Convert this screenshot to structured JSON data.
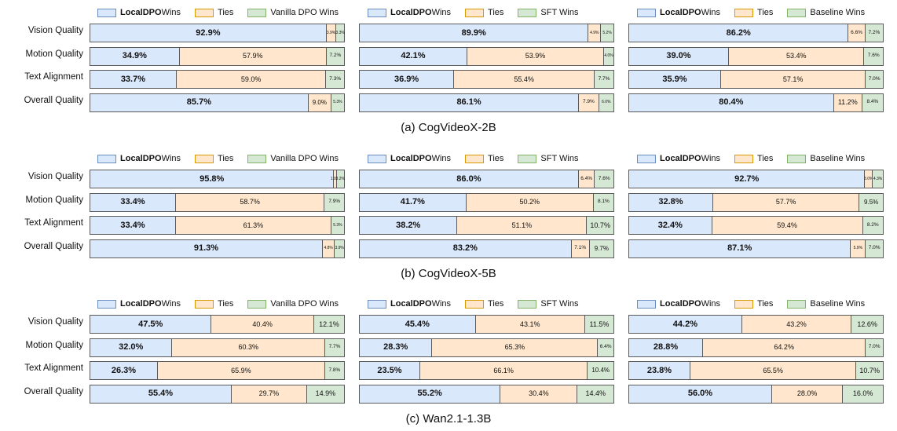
{
  "colors": {
    "local_fill": "#dae8fc",
    "local_border": "#6c8ebf",
    "ties_fill": "#ffe6cc",
    "ties_border": "#d79b00",
    "base_fill": "#d5e8d4",
    "base_border": "#82b366"
  },
  "chart_data": [
    {
      "type": "bar",
      "orientation": "horizontal",
      "stacked": true,
      "normalized": true,
      "caption": "(a) CogVideoX-2B",
      "panels": [
        {
          "legend": {
            "local": "LocalDPO",
            "local_suffix": " Wins",
            "ties": "Ties",
            "base": "Vanilla DPO Wins"
          },
          "categories": [
            "Vision Quality",
            "Motion Quality",
            "Text Alignment",
            "Overall Quality"
          ],
          "series": [
            {
              "name": "LocalDPO Wins",
              "values": [
                92.9,
                34.9,
                33.7,
                85.7
              ],
              "labels": [
                "92.9%",
                "34.9%",
                "33.7%",
                "85.7%"
              ]
            },
            {
              "name": "Ties",
              "values": [
                3.9,
                57.9,
                59.0,
                9.0
              ],
              "labels": [
                "3.9%",
                "57.9%",
                "59.0%",
                "9.0%"
              ]
            },
            {
              "name": "Vanilla DPO Wins",
              "values": [
                3.3,
                7.2,
                7.3,
                5.3
              ],
              "labels": [
                "3.3%",
                "7.2%",
                "7.3%",
                "5.3%"
              ]
            }
          ]
        },
        {
          "legend": {
            "local": "LocalDPO",
            "local_suffix": " Wins",
            "ties": "Ties",
            "base": "SFT Wins"
          },
          "categories": [
            "Vision Quality",
            "Motion Quality",
            "Text Alignment",
            "Overall Quality"
          ],
          "series": [
            {
              "name": "LocalDPO Wins",
              "values": [
                89.9,
                42.1,
                36.9,
                86.1
              ],
              "labels": [
                "89.9%",
                "42.1%",
                "36.9%",
                "86.1%"
              ]
            },
            {
              "name": "Ties",
              "values": [
                4.9,
                53.9,
                55.4,
                7.9
              ],
              "labels": [
                "4.9%",
                "53.9%",
                "55.4%",
                "7.9%"
              ]
            },
            {
              "name": "SFT Wins",
              "values": [
                5.2,
                4.0,
                7.7,
                6.0
              ],
              "labels": [
                "5.2%",
                "4.0%",
                "7.7%",
                "6.0%"
              ]
            }
          ]
        },
        {
          "legend": {
            "local": "LocalDPO",
            "local_suffix": " Wins",
            "ties": "Ties",
            "base": "Baseline Wins"
          },
          "categories": [
            "Vision Quality",
            "Motion Quality",
            "Text Alignment",
            "Overall Quality"
          ],
          "series": [
            {
              "name": "LocalDPO Wins",
              "values": [
                86.2,
                39.0,
                35.9,
                80.4
              ],
              "labels": [
                "86.2%",
                "39.0%",
                "35.9%",
                "80.4%"
              ]
            },
            {
              "name": "Ties",
              "values": [
                6.6,
                53.4,
                57.1,
                11.2
              ],
              "labels": [
                "6.6%",
                "53.4%",
                "57.1%",
                "11.2%"
              ]
            },
            {
              "name": "Baseline Wins",
              "values": [
                7.2,
                7.6,
                7.0,
                8.4
              ],
              "labels": [
                "7.2%",
                "7.6%",
                "7.0%",
                "8.4%"
              ]
            }
          ]
        }
      ]
    },
    {
      "type": "bar",
      "orientation": "horizontal",
      "stacked": true,
      "normalized": true,
      "caption": "(b) CogVideoX-5B",
      "panels": [
        {
          "legend": {
            "local": "LocalDPO",
            "local_suffix": " Wins",
            "ties": "Ties",
            "base": "Vanilla DPO Wins"
          },
          "categories": [
            "Vision Quality",
            "Motion Quality",
            "Text Alignment",
            "Overall Quality"
          ],
          "series": [
            {
              "name": "LocalDPO Wins",
              "values": [
                95.8,
                33.4,
                33.4,
                91.3
              ],
              "labels": [
                "95.8%",
                "33.4%",
                "33.4%",
                "91.3%"
              ]
            },
            {
              "name": "Ties",
              "values": [
                1.0,
                58.7,
                61.3,
                4.8
              ],
              "labels": [
                "1.0%",
                "58.7%",
                "61.3%",
                "4.8%"
              ]
            },
            {
              "name": "Vanilla DPO Wins",
              "values": [
                3.2,
                7.9,
                5.3,
                3.9
              ],
              "labels": [
                "3.2%",
                "7.9%",
                "5.3%",
                "3.9%"
              ]
            }
          ]
        },
        {
          "legend": {
            "local": "LocalDPO",
            "local_suffix": " Wins",
            "ties": "Ties",
            "base": "SFT Wins"
          },
          "categories": [
            "Vision Quality",
            "Motion Quality",
            "Text Alignment",
            "Overall Quality"
          ],
          "series": [
            {
              "name": "LocalDPO Wins",
              "values": [
                86.0,
                41.7,
                38.2,
                83.2
              ],
              "labels": [
                "86.0%",
                "41.7%",
                "38.2%",
                "83.2%"
              ]
            },
            {
              "name": "Ties",
              "values": [
                6.4,
                50.2,
                51.1,
                7.1
              ],
              "labels": [
                "6.4%",
                "50.2%",
                "51.1%",
                "7.1%"
              ]
            },
            {
              "name": "SFT Wins",
              "values": [
                7.6,
                8.1,
                10.7,
                9.7
              ],
              "labels": [
                "7.6%",
                "8.1%",
                "10.7%",
                "9.7%"
              ]
            }
          ]
        },
        {
          "legend": {
            "local": "LocalDPO",
            "local_suffix": " Wins",
            "ties": "Ties",
            "base": "Baseline Wins"
          },
          "categories": [
            "Vision Quality",
            "Motion Quality",
            "Text Alignment",
            "Overall Quality"
          ],
          "series": [
            {
              "name": "LocalDPO Wins",
              "values": [
                92.7,
                32.8,
                32.4,
                87.1
              ],
              "labels": [
                "92.7%",
                "32.8%",
                "32.4%",
                "87.1%"
              ]
            },
            {
              "name": "Ties",
              "values": [
                3.0,
                57.7,
                59.4,
                5.9
              ],
              "labels": [
                "3.0%",
                "57.7%",
                "59.4%",
                "5.9%"
              ]
            },
            {
              "name": "Baseline Wins",
              "values": [
                4.3,
                9.5,
                8.2,
                7.0
              ],
              "labels": [
                "4.3%",
                "9.5%",
                "8.2%",
                "7.0%"
              ]
            }
          ]
        }
      ]
    },
    {
      "type": "bar",
      "orientation": "horizontal",
      "stacked": true,
      "normalized": true,
      "caption": "(c) Wan2.1-1.3B",
      "panels": [
        {
          "legend": {
            "local": "LocalDPO",
            "local_suffix": " Wins",
            "ties": "Ties",
            "base": "Vanilla DPO Wins"
          },
          "categories": [
            "Vision Quality",
            "Motion Quality",
            "Text Alignment",
            "Overall Quality"
          ],
          "series": [
            {
              "name": "LocalDPO Wins",
              "values": [
                47.5,
                32.0,
                26.3,
                55.4
              ],
              "labels": [
                "47.5%",
                "32.0%",
                "26.3%",
                "55.4%"
              ]
            },
            {
              "name": "Ties",
              "values": [
                40.4,
                60.3,
                65.9,
                29.7
              ],
              "labels": [
                "40.4%",
                "60.3%",
                "65.9%",
                "29.7%"
              ]
            },
            {
              "name": "Vanilla DPO Wins",
              "values": [
                12.1,
                7.7,
                7.8,
                14.9
              ],
              "labels": [
                "12.1%",
                "7.7%",
                "7.8%",
                "14.9%"
              ]
            }
          ]
        },
        {
          "legend": {
            "local": "LocalDPO",
            "local_suffix": " Wins",
            "ties": "Ties",
            "base": "SFT Wins"
          },
          "categories": [
            "Vision Quality",
            "Motion Quality",
            "Text Alignment",
            "Overall Quality"
          ],
          "series": [
            {
              "name": "LocalDPO Wins",
              "values": [
                45.4,
                28.3,
                23.5,
                55.2
              ],
              "labels": [
                "45.4%",
                "28.3%",
                "23.5%",
                "55.2%"
              ]
            },
            {
              "name": "Ties",
              "values": [
                43.1,
                65.3,
                66.1,
                30.4
              ],
              "labels": [
                "43.1%",
                "65.3%",
                "66.1%",
                "30.4%"
              ]
            },
            {
              "name": "SFT Wins",
              "values": [
                11.5,
                6.4,
                10.4,
                14.4
              ],
              "labels": [
                "11.5%",
                "6.4%",
                "10.4%",
                "14.4%"
              ]
            }
          ]
        },
        {
          "legend": {
            "local": "LocalDPO",
            "local_suffix": " Wins",
            "ties": "Ties",
            "base": "Baseline Wins"
          },
          "categories": [
            "Vision Quality",
            "Motion Quality",
            "Text Alignment",
            "Overall Quality"
          ],
          "series": [
            {
              "name": "LocalDPO Wins",
              "values": [
                44.2,
                28.8,
                23.8,
                56.0
              ],
              "labels": [
                "44.2%",
                "28.8%",
                "23.8%",
                "56.0%"
              ]
            },
            {
              "name": "Ties",
              "values": [
                43.2,
                64.2,
                65.5,
                28.0
              ],
              "labels": [
                "43.2%",
                "64.2%",
                "65.5%",
                "28.0%"
              ]
            },
            {
              "name": "Baseline Wins",
              "values": [
                12.6,
                7.0,
                10.7,
                16.0
              ],
              "labels": [
                "12.6%",
                "7.0%",
                "10.7%",
                "16.0%"
              ]
            }
          ]
        }
      ]
    }
  ]
}
